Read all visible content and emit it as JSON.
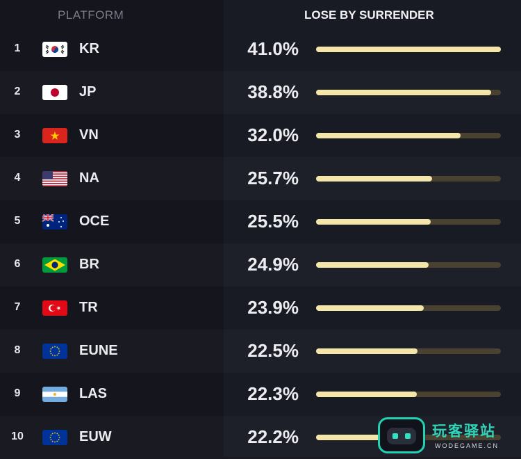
{
  "header": {
    "platform_label": "PLATFORM",
    "metric_label": "LOSE BY SURRENDER"
  },
  "chart_data": {
    "type": "bar",
    "orientation": "horizontal",
    "title": "LOSE BY SURRENDER",
    "categories": [
      "KR",
      "JP",
      "VN",
      "NA",
      "OCE",
      "BR",
      "TR",
      "EUNE",
      "LAS",
      "EUW"
    ],
    "series": [
      {
        "values": [
          41.0,
          38.8,
          32.0,
          25.7,
          25.5,
          24.9,
          23.9,
          22.5,
          22.3,
          22.2
        ]
      }
    ],
    "xlim": [
      0,
      41.0
    ],
    "grid": false,
    "legend": "none"
  },
  "rows": [
    {
      "rank": "1",
      "region": "KR",
      "pct": "41.0%",
      "value": 41.0,
      "flag": "south-korea-flag"
    },
    {
      "rank": "2",
      "region": "JP",
      "pct": "38.8%",
      "value": 38.8,
      "flag": "japan-flag"
    },
    {
      "rank": "3",
      "region": "VN",
      "pct": "32.0%",
      "value": 32.0,
      "flag": "vietnam-flag"
    },
    {
      "rank": "4",
      "region": "NA",
      "pct": "25.7%",
      "value": 25.7,
      "flag": "usa-flag"
    },
    {
      "rank": "5",
      "region": "OCE",
      "pct": "25.5%",
      "value": 25.5,
      "flag": "australia-flag"
    },
    {
      "rank": "6",
      "region": "BR",
      "pct": "24.9%",
      "value": 24.9,
      "flag": "brazil-flag"
    },
    {
      "rank": "7",
      "region": "TR",
      "pct": "23.9%",
      "value": 23.9,
      "flag": "turkey-flag"
    },
    {
      "rank": "8",
      "region": "EUNE",
      "pct": "22.5%",
      "value": 22.5,
      "flag": "eu-flag"
    },
    {
      "rank": "9",
      "region": "LAS",
      "pct": "22.3%",
      "value": 22.3,
      "flag": "argentina-flag"
    },
    {
      "rank": "10",
      "region": "EUW",
      "pct": "22.2%",
      "value": 22.2,
      "flag": "eu-flag"
    }
  ],
  "colors": {
    "background": "#14151d",
    "bar_fill": "#f4e6a8",
    "bar_track": "#4a4230",
    "header_muted": "#7b7d88"
  },
  "watermark": {
    "title": "玩客驿站",
    "subtitle": "WODEGAME.CN",
    "logo": "robot-face-logo"
  }
}
